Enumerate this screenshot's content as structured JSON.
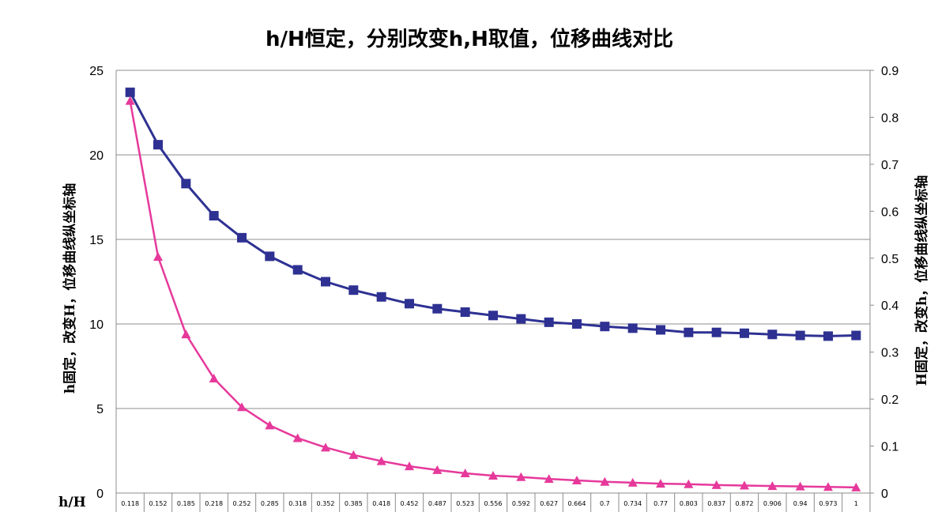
{
  "chart_data": {
    "type": "line",
    "title": "h/H恒定，分别改变h,H取值，位移曲线对比",
    "xlabel": "h/H",
    "ylabel_left": "h固定，改变H，位移曲线纵坐标轴",
    "ylabel_right": "H固定，改变h，位移曲线纵坐标轴",
    "categories": [
      "0.118",
      "0.152",
      "0.185",
      "0.218",
      "0.252",
      "0.285",
      "0.318",
      "0.352",
      "0.385",
      "0.418",
      "0.452",
      "0.487",
      "0.523",
      "0.556",
      "0.592",
      "0.627",
      "0.664",
      "0.7",
      "0.734",
      "0.77",
      "0.803",
      "0.837",
      "0.872",
      "0.906",
      "0.94",
      "0.973",
      "1"
    ],
    "left_axis": {
      "ylim": [
        0,
        25
      ],
      "ticks": [
        "0",
        "5",
        "10",
        "15",
        "20",
        "25"
      ]
    },
    "right_axis": {
      "ylim": [
        0,
        0.9
      ],
      "ticks": [
        "0",
        "0.1",
        "0.2",
        "0.3",
        "0.4",
        "0.5",
        "0.6",
        "0.7",
        "0.8",
        "0.9"
      ]
    },
    "grid": true,
    "series": [
      {
        "axis": "left",
        "color": "#2E3192",
        "marker": "square",
        "values": [
          23.7,
          20.6,
          18.3,
          16.4,
          15.1,
          14.0,
          13.2,
          12.5,
          12.0,
          11.6,
          11.2,
          10.9,
          10.7,
          10.5,
          10.3,
          10.1,
          10.0,
          9.85,
          9.75,
          9.65,
          9.5,
          9.5,
          9.45,
          9.38,
          9.32,
          9.28,
          9.32
        ]
      },
      {
        "axis": "right",
        "color": "#E6399B",
        "marker": "triangle",
        "values": [
          0.835,
          0.503,
          0.338,
          0.244,
          0.183,
          0.144,
          0.117,
          0.097,
          0.081,
          0.068,
          0.057,
          0.049,
          0.042,
          0.037,
          0.034,
          0.03,
          0.027,
          0.024,
          0.022,
          0.02,
          0.019,
          0.017,
          0.016,
          0.015,
          0.014,
          0.013,
          0.012
        ]
      }
    ]
  }
}
